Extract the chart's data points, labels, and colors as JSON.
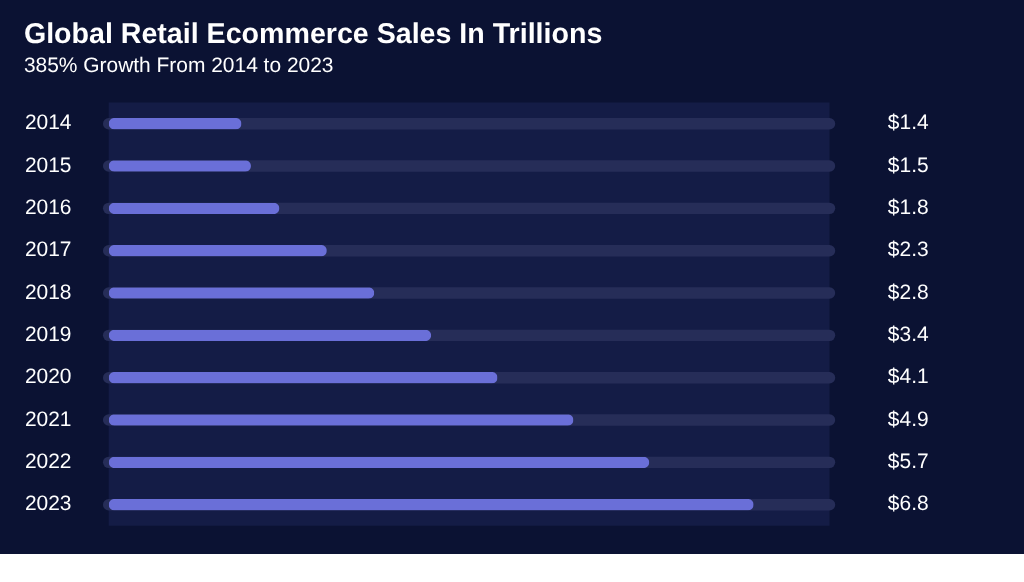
{
  "chart_data": {
    "type": "bar",
    "orientation": "horizontal",
    "title": "Global Retail Ecommerce Sales In Trillions",
    "subtitle": "385% Growth From 2014 to 2023",
    "categories": [
      "2014",
      "2015",
      "2016",
      "2017",
      "2018",
      "2019",
      "2020",
      "2021",
      "2022",
      "2023"
    ],
    "values": [
      1.4,
      1.5,
      1.8,
      2.3,
      2.8,
      3.4,
      4.1,
      4.9,
      5.7,
      6.8
    ],
    "value_labels": [
      "$1.4",
      "$1.5",
      "$1.8",
      "$2.3",
      "$2.8",
      "$3.4",
      "$4.1",
      "$4.9",
      "$5.7",
      "$6.8"
    ],
    "color": "#6a6fd8",
    "xlim": [
      0,
      7.6
    ],
    "tick_labels": "y"
  }
}
